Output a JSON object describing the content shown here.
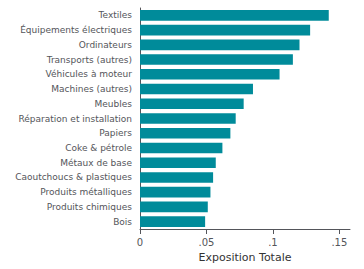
{
  "chart_data": {
    "type": "bar",
    "orientation": "horizontal",
    "categories": [
      "Bois",
      "Produits chimiques",
      "Produits métalliques",
      "Caoutchoucs & plastiques",
      "Métaux de base",
      "Coke & pétrole",
      "Papiers",
      "Réparation et installation",
      "Meubles",
      "Machines (autres)",
      "Véhicules à moteur",
      "Transports (autres)",
      "Ordinateurs",
      "Équipements électriques",
      "Textiles"
    ],
    "values": [
      0.049,
      0.051,
      0.053,
      0.055,
      0.057,
      0.062,
      0.068,
      0.072,
      0.078,
      0.085,
      0.105,
      0.115,
      0.12,
      0.128,
      0.142
    ],
    "color": "#008B9A",
    "xlabel": "Exposition Totale",
    "xlim": [
      0,
      0.158
    ],
    "xticks": [
      0,
      {
        "value": 0.05,
        "label": ".05"
      },
      {
        "value": 0.1,
        "label": ".1"
      },
      {
        "value": 0.15,
        "label": ".15"
      }
    ],
    "grid": false
  }
}
